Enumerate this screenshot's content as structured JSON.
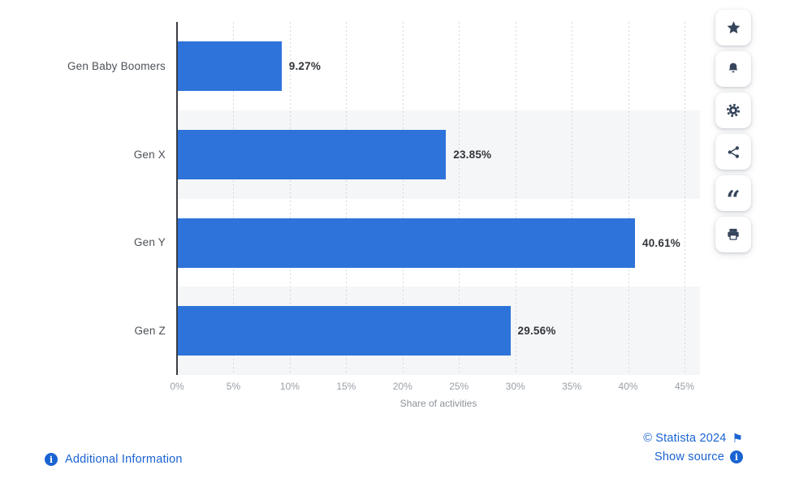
{
  "chart_data": {
    "type": "bar",
    "orientation": "horizontal",
    "categories": [
      "Gen Baby Boomers",
      "Gen X",
      "Gen Y",
      "Gen Z"
    ],
    "values": [
      9.27,
      23.85,
      40.61,
      29.56
    ],
    "value_labels": [
      "9.27%",
      "23.85%",
      "40.61%",
      "29.56%"
    ],
    "xlabel": "Share of activities",
    "x_ticks": [
      "0%",
      "5%",
      "10%",
      "15%",
      "20%",
      "25%",
      "30%",
      "35%",
      "40%",
      "45%"
    ],
    "xlim": [
      0,
      45
    ],
    "grid": true,
    "legend": false,
    "bar_color": "#2d73da",
    "stripe_color": "#f5f6f8"
  },
  "toolbar": {
    "icon_color": "#36455c",
    "buttons": [
      {
        "name": "favorite-button",
        "icon": "star-icon"
      },
      {
        "name": "alerts-button",
        "icon": "bell-icon"
      },
      {
        "name": "settings-button",
        "icon": "gear-icon"
      },
      {
        "name": "share-button",
        "icon": "share-icon"
      },
      {
        "name": "citation-button",
        "icon": "quote-icon"
      },
      {
        "name": "print-button",
        "icon": "printer-icon"
      }
    ]
  },
  "footer": {
    "additional_information_label": "Additional Information",
    "copyright_label": "© Statista 2024",
    "show_source_label": "Show source",
    "link_color": "#1a63d2"
  }
}
